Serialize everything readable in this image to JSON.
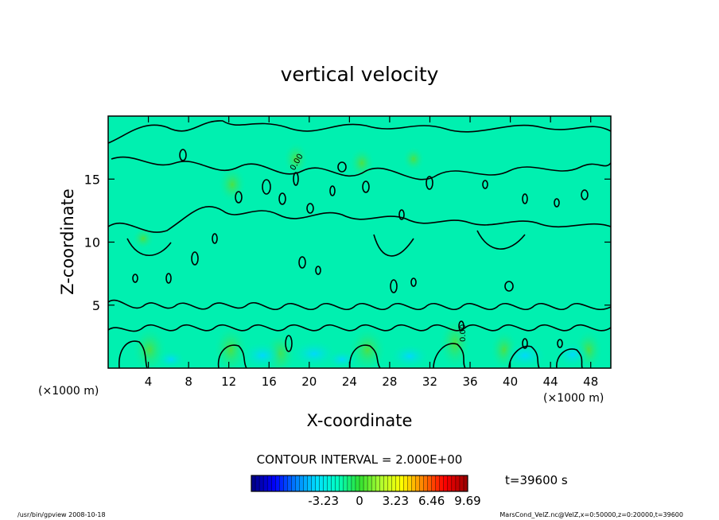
{
  "chart_data": {
    "type": "heatmap",
    "title": "vertical velocity",
    "xlabel": "X-coordinate",
    "ylabel": "Z-coordinate",
    "x_unit_left": "(×1000 m)",
    "x_unit_right": "(×1000 m)",
    "xlim": [
      0,
      50
    ],
    "ylim": [
      0,
      20
    ],
    "x_ticks": [
      4,
      8,
      12,
      16,
      20,
      24,
      28,
      32,
      36,
      40,
      44,
      48
    ],
    "y_ticks": [
      5,
      10,
      15
    ],
    "contour_interval_text": "CONTOUR INTERVAL = 2.000E+00",
    "contour_labels": [
      "0.00",
      "0.00"
    ],
    "time_label": "t=39600 s",
    "colorbar": {
      "min": -9.69,
      "max": 9.69,
      "tick_values": [
        -3.23,
        0,
        3.23,
        6.46,
        9.69
      ],
      "tick_labels": [
        "-3.23",
        "0",
        "3.23",
        "6.46",
        "9.69"
      ],
      "colors": [
        "#00008b",
        "#0000ff",
        "#0080ff",
        "#00e0ff",
        "#00ffc0",
        "#30e030",
        "#b0ff30",
        "#ffff00",
        "#ff8000",
        "#ff0000",
        "#a00000"
      ]
    },
    "background_color": "#00f0b0",
    "grid": false
  },
  "footer": {
    "left": "/usr/bin/gpview  2008-10-18",
    "right": "MarsCond_VelZ.nc@VelZ,x=0:50000,z=0:20000,t=39600"
  }
}
